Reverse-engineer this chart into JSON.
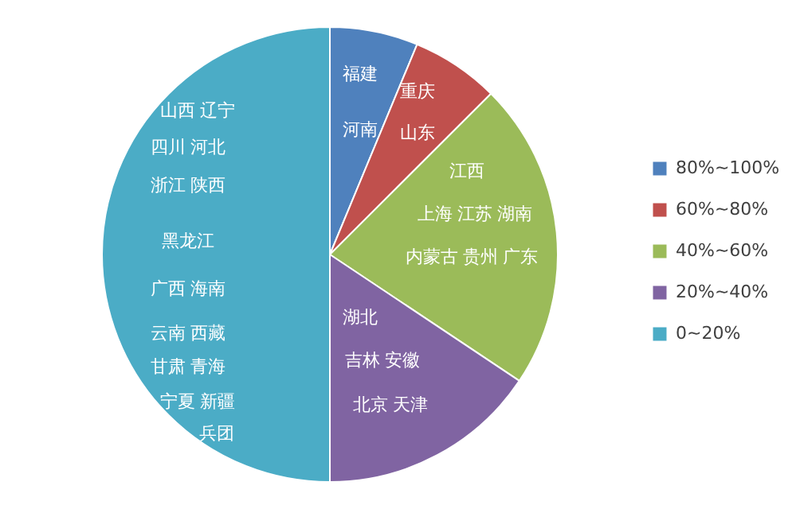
{
  "chart_data": {
    "type": "pie",
    "categories": [
      "80%~100%",
      "60%~80%",
      "40%~60%",
      "20%~40%",
      "0~20%"
    ],
    "values": [
      6.25,
      6.25,
      21.875,
      15.625,
      50
    ],
    "colors": [
      "#4f81bd",
      "#c0504d",
      "#9bbb59",
      "#8064a2",
      "#4bacc6"
    ],
    "legend": "right",
    "annotations": [
      "福建",
      "河南",
      "重庆",
      "山东",
      "江西",
      "上海 江苏 湖南",
      "内蒙古 贵州 广东",
      "湖北",
      "吉林 安徽",
      "北京 天津",
      "山西 辽宁",
      "四川 河北",
      "浙江 陕西",
      "黑龙江",
      "广西 海南",
      "云南 西藏",
      "甘肃 青海",
      "宁夏 新疆",
      "兵团"
    ]
  }
}
